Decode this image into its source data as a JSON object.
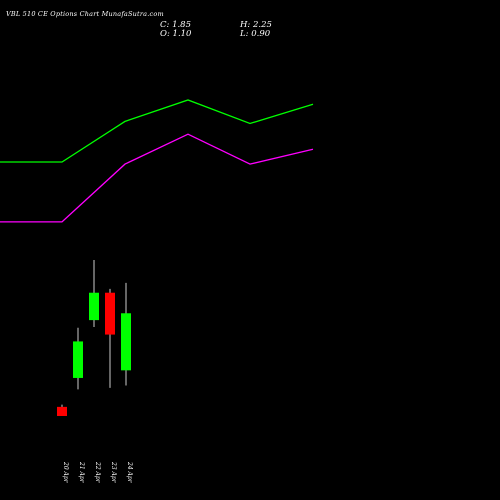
{
  "header": {
    "title": "VBL 510 CE Options Chart MunafaSutra.com",
    "close_label": "C: 1.85",
    "high_label": "H: 2.25",
    "open_label": "O: 1.10",
    "low_label": "L: 0.90"
  },
  "colors": {
    "background": "#000000",
    "bull": "#00ff00",
    "bear": "#ff0000",
    "line_upper": "#00ff00",
    "line_lower": "#ff00ff",
    "text": "#ffffff"
  },
  "chart_data": [
    {
      "type": "candlestick",
      "categories": [
        "20 Apr",
        "21 Apr",
        "22 Apr",
        "23 Apr",
        "24 Apr"
      ],
      "candles": [
        {
          "date": "20 Apr",
          "open": 0.62,
          "high": 0.65,
          "low": 0.5,
          "close": 0.5
        },
        {
          "date": "21 Apr",
          "open": 1.0,
          "high": 1.66,
          "low": 0.85,
          "close": 1.48
        },
        {
          "date": "22 Apr",
          "open": 1.76,
          "high": 2.55,
          "low": 1.67,
          "close": 2.12
        },
        {
          "date": "23 Apr",
          "open": 2.12,
          "high": 2.17,
          "low": 0.87,
          "close": 1.57
        },
        {
          "date": "24 Apr",
          "open": 1.1,
          "high": 2.25,
          "low": 0.9,
          "close": 1.85
        }
      ]
    },
    {
      "type": "line",
      "series": [
        {
          "color": "#00ff00",
          "values": [
            4.6,
            4.6,
            5.55,
            6.05,
            5.5,
            5.95
          ]
        },
        {
          "color": "#ff00ff",
          "values": [
            3.2,
            3.2,
            4.55,
            5.25,
            4.55,
            4.9
          ]
        }
      ]
    }
  ]
}
